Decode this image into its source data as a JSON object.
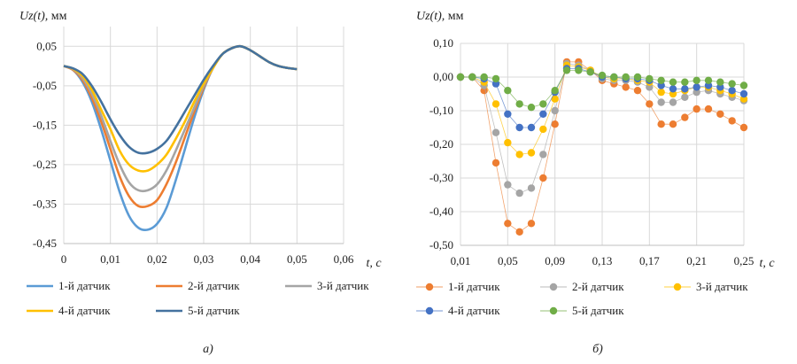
{
  "chart_data": [
    {
      "type": "line",
      "ylabel_var": "Uz(t),",
      "ylabel_unit": "мм",
      "xlabel": "t, c",
      "caption": "а)",
      "xlim": [
        0,
        0.06
      ],
      "ylim": [
        -0.45,
        0.1
      ],
      "x_ticks": [
        "0",
        "0,01",
        "0,02",
        "0,03",
        "0,04",
        "0,05",
        "0,06"
      ],
      "x_tick_values": [
        0,
        0.01,
        0.02,
        0.03,
        0.04,
        0.05,
        0.06
      ],
      "y_ticks": [
        "0,05",
        "-0,05",
        "-0,15",
        "-0,25",
        "-0,35",
        "-0,45"
      ],
      "y_tick_values": [
        0.05,
        -0.05,
        -0.15,
        -0.25,
        -0.35,
        -0.45
      ],
      "grid": true,
      "legend_position": "bottom",
      "x": [
        0,
        0.002,
        0.004,
        0.006,
        0.008,
        0.01,
        0.012,
        0.014,
        0.016,
        0.018,
        0.02,
        0.022,
        0.024,
        0.026,
        0.028,
        0.03,
        0.032,
        0.034,
        0.036,
        0.038,
        0.04,
        0.042,
        0.044,
        0.046,
        0.048,
        0.05
      ],
      "series": [
        {
          "name": "1-й датчик",
          "color": "#5b9bd5",
          "values": [
            0,
            -0.01,
            -0.04,
            -0.09,
            -0.16,
            -0.24,
            -0.32,
            -0.38,
            -0.41,
            -0.415,
            -0.4,
            -0.36,
            -0.29,
            -0.21,
            -0.13,
            -0.06,
            -0.005,
            0.03,
            0.045,
            0.05,
            0.04,
            0.025,
            0.01,
            0.0,
            -0.005,
            -0.008
          ]
        },
        {
          "name": "2-й датчик",
          "color": "#ed7d31",
          "values": [
            0,
            -0.01,
            -0.035,
            -0.08,
            -0.14,
            -0.21,
            -0.28,
            -0.33,
            -0.355,
            -0.355,
            -0.34,
            -0.3,
            -0.245,
            -0.18,
            -0.115,
            -0.055,
            -0.005,
            0.03,
            0.045,
            0.05,
            0.04,
            0.025,
            0.01,
            0.0,
            -0.005,
            -0.008
          ]
        },
        {
          "name": "3-й датчик",
          "color": "#a5a5a5",
          "values": [
            0,
            -0.008,
            -0.03,
            -0.07,
            -0.125,
            -0.19,
            -0.25,
            -0.295,
            -0.315,
            -0.315,
            -0.3,
            -0.265,
            -0.215,
            -0.16,
            -0.105,
            -0.05,
            -0.005,
            0.03,
            0.045,
            0.05,
            0.04,
            0.025,
            0.01,
            0.0,
            -0.005,
            -0.008
          ]
        },
        {
          "name": "4-й датчик",
          "color": "#ffc000",
          "values": [
            0,
            -0.007,
            -0.025,
            -0.06,
            -0.11,
            -0.16,
            -0.215,
            -0.25,
            -0.265,
            -0.265,
            -0.25,
            -0.225,
            -0.185,
            -0.14,
            -0.09,
            -0.045,
            -0.005,
            0.03,
            0.045,
            0.05,
            0.04,
            0.025,
            0.01,
            0.0,
            -0.005,
            -0.008
          ]
        },
        {
          "name": "5-й датчик",
          "color": "#44729f",
          "values": [
            0,
            -0.006,
            -0.02,
            -0.05,
            -0.09,
            -0.135,
            -0.175,
            -0.205,
            -0.22,
            -0.22,
            -0.21,
            -0.19,
            -0.155,
            -0.115,
            -0.075,
            -0.035,
            0.0,
            0.03,
            0.045,
            0.05,
            0.04,
            0.025,
            0.01,
            0.0,
            -0.005,
            -0.008
          ]
        }
      ]
    },
    {
      "type": "scatter",
      "ylabel_var": "Uz(t),",
      "ylabel_unit": "мм",
      "xlabel": "t, c",
      "caption": "б)",
      "xlim": [
        0.01,
        0.25
      ],
      "ylim": [
        -0.5,
        0.1
      ],
      "x_ticks": [
        "0,01",
        "0,05",
        "0,09",
        "0,13",
        "0,17",
        "0,21",
        "0,25"
      ],
      "x_tick_values": [
        0.01,
        0.05,
        0.09,
        0.13,
        0.17,
        0.21,
        0.25
      ],
      "y_ticks": [
        "0,10",
        "0,00",
        "-0,10",
        "-0,20",
        "-0,30",
        "-0,40",
        "-0,50"
      ],
      "y_tick_values": [
        0.1,
        0.0,
        -0.1,
        -0.2,
        -0.3,
        -0.4,
        -0.5
      ],
      "grid": true,
      "legend_position": "bottom",
      "x": [
        0.01,
        0.02,
        0.03,
        0.04,
        0.05,
        0.06,
        0.07,
        0.08,
        0.09,
        0.1,
        0.11,
        0.12,
        0.13,
        0.14,
        0.15,
        0.16,
        0.17,
        0.18,
        0.19,
        0.2,
        0.21,
        0.22,
        0.23,
        0.24,
        0.25
      ],
      "series": [
        {
          "name": "1-й датчик",
          "color": "#ed7d31",
          "values": [
            0,
            0,
            -0.04,
            -0.255,
            -0.435,
            -0.46,
            -0.435,
            -0.3,
            -0.14,
            0.045,
            0.045,
            0.02,
            -0.01,
            -0.02,
            -0.03,
            -0.04,
            -0.08,
            -0.14,
            -0.14,
            -0.12,
            -0.095,
            -0.095,
            -0.11,
            -0.13,
            -0.15
          ]
        },
        {
          "name": "2-й датчик",
          "color": "#a5a5a5",
          "values": [
            0,
            0,
            -0.025,
            -0.165,
            -0.32,
            -0.345,
            -0.33,
            -0.23,
            -0.1,
            0.04,
            0.035,
            0.02,
            -0.005,
            -0.01,
            -0.01,
            -0.015,
            -0.03,
            -0.075,
            -0.075,
            -0.06,
            -0.045,
            -0.04,
            -0.05,
            -0.06,
            -0.07
          ]
        },
        {
          "name": "3-й датчик",
          "color": "#ffc000",
          "values": [
            0,
            0,
            -0.015,
            -0.08,
            -0.195,
            -0.23,
            -0.225,
            -0.155,
            -0.065,
            0.035,
            0.03,
            0.02,
            0.0,
            -0.005,
            -0.005,
            -0.01,
            -0.015,
            -0.045,
            -0.05,
            -0.04,
            -0.03,
            -0.03,
            -0.04,
            -0.05,
            -0.065
          ]
        },
        {
          "name": "4-й датчик",
          "color": "#4472c4",
          "values": [
            0,
            0,
            -0.005,
            -0.02,
            -0.11,
            -0.15,
            -0.15,
            -0.11,
            -0.045,
            0.025,
            0.025,
            0.015,
            0.0,
            0.0,
            -0.005,
            -0.005,
            -0.01,
            -0.025,
            -0.035,
            -0.035,
            -0.03,
            -0.025,
            -0.03,
            -0.04,
            -0.05
          ]
        },
        {
          "name": "5-й датчик",
          "color": "#70ad47",
          "values": [
            0,
            0,
            0,
            -0.005,
            -0.04,
            -0.08,
            -0.09,
            -0.08,
            -0.04,
            0.02,
            0.02,
            0.015,
            0.005,
            0.0,
            0.0,
            0.0,
            -0.005,
            -0.01,
            -0.015,
            -0.015,
            -0.01,
            -0.01,
            -0.015,
            -0.02,
            -0.025
          ]
        }
      ]
    }
  ]
}
